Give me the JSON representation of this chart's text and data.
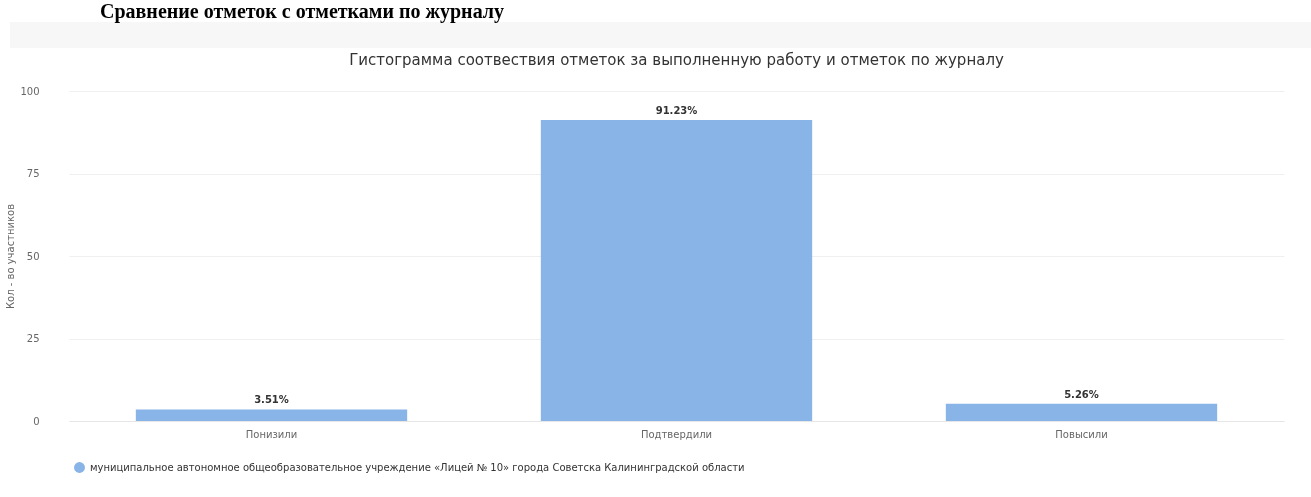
{
  "chart_data": {
    "type": "bar",
    "title": "Сравнение отметок с отметками по журналу",
    "subtitle": "Гистограмма соотвествия отметок за выполненную работу и отметок по журналу",
    "ylabel": "Кол - во участников",
    "categories": [
      "Понизили",
      "Подтвердили",
      "Повысили"
    ],
    "series": [
      {
        "name": "муниципальное автономное общеобразовательное учреждение «Лицей № 10» города Советска Калининградской области",
        "color": "#88b4e7",
        "values": [
          3.51,
          91.23,
          5.26
        ],
        "value_labels": [
          "3.51%",
          "91.23%",
          "5.26%"
        ]
      }
    ],
    "ylim": [
      0,
      100
    ],
    "yticks": [
      0,
      25,
      50,
      75,
      100
    ],
    "grid": "y",
    "legend": "bottom"
  }
}
